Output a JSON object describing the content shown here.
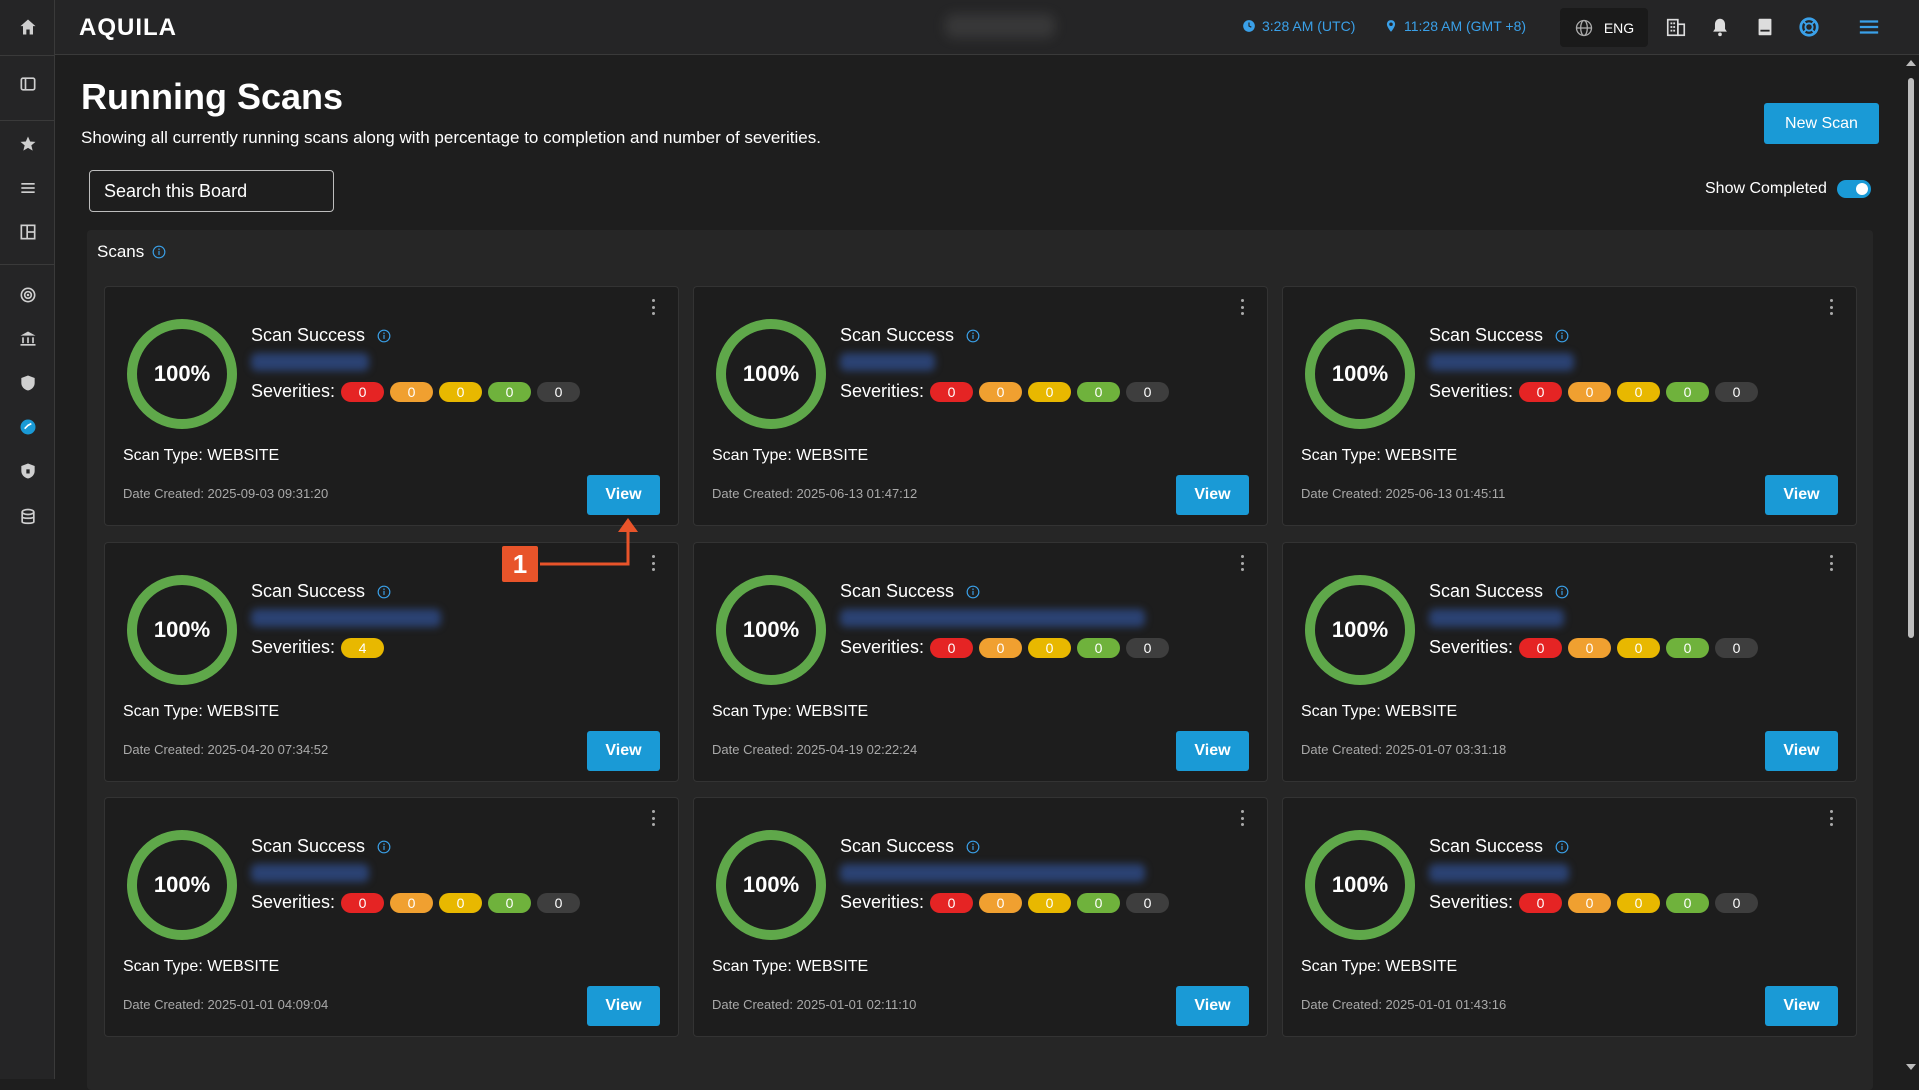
{
  "app": {
    "logo": "AQUILA"
  },
  "header": {
    "utc_time": "3:28 AM (UTC)",
    "local_time": "11:28 AM (GMT +8)",
    "language": "ENG"
  },
  "page": {
    "title": "Running Scans",
    "subtitle": "Showing all currently running scans along with percentage to completion and number of severities.",
    "new_scan_label": "New Scan",
    "search_placeholder": "Search this Board",
    "show_completed_label": "Show Completed",
    "show_completed_on": true
  },
  "panel": {
    "title": "Scans"
  },
  "cards": [
    {
      "percent": "100%",
      "status": "Scan Success",
      "severities_label": "Severities:",
      "severities": [
        "0",
        "0",
        "0",
        "0",
        "0"
      ],
      "scan_type": "Scan Type: WEBSITE",
      "date": "Date Created: 2025-09-03 09:31:20",
      "view": "View"
    },
    {
      "percent": "100%",
      "status": "Scan Success",
      "severities_label": "Severities:",
      "severities": [
        "0",
        "0",
        "0",
        "0",
        "0"
      ],
      "scan_type": "Scan Type: WEBSITE",
      "date": "Date Created: 2025-06-13 01:47:12",
      "view": "View"
    },
    {
      "percent": "100%",
      "status": "Scan Success",
      "severities_label": "Severities:",
      "severities": [
        "0",
        "0",
        "0",
        "0",
        "0"
      ],
      "scan_type": "Scan Type: WEBSITE",
      "date": "Date Created: 2025-06-13 01:45:11",
      "view": "View"
    },
    {
      "percent": "100%",
      "status": "Scan Success",
      "severities_label": "Severities:",
      "severities": [
        "4"
      ],
      "scan_type": "Scan Type: WEBSITE",
      "date": "Date Created: 2025-04-20 07:34:52",
      "view": "View"
    },
    {
      "percent": "100%",
      "status": "Scan Success",
      "severities_label": "Severities:",
      "severities": [
        "0",
        "0",
        "0",
        "0",
        "0"
      ],
      "scan_type": "Scan Type: WEBSITE",
      "date": "Date Created: 2025-04-19 02:22:24",
      "view": "View"
    },
    {
      "percent": "100%",
      "status": "Scan Success",
      "severities_label": "Severities:",
      "severities": [
        "0",
        "0",
        "0",
        "0",
        "0"
      ],
      "scan_type": "Scan Type: WEBSITE",
      "date": "Date Created: 2025-01-07 03:31:18",
      "view": "View"
    },
    {
      "percent": "100%",
      "status": "Scan Success",
      "severities_label": "Severities:",
      "severities": [
        "0",
        "0",
        "0",
        "0",
        "0"
      ],
      "scan_type": "Scan Type: WEBSITE",
      "date": "Date Created: 2025-01-01 04:09:04",
      "view": "View"
    },
    {
      "percent": "100%",
      "status": "Scan Success",
      "severities_label": "Severities:",
      "severities": [
        "0",
        "0",
        "0",
        "0",
        "0"
      ],
      "scan_type": "Scan Type: WEBSITE",
      "date": "Date Created: 2025-01-01 02:11:10",
      "view": "View"
    },
    {
      "percent": "100%",
      "status": "Scan Success",
      "severities_label": "Severities:",
      "severities": [
        "0",
        "0",
        "0",
        "0",
        "0"
      ],
      "scan_type": "Scan Type: WEBSITE",
      "date": "Date Created: 2025-01-01 01:43:16",
      "view": "View"
    }
  ],
  "annotation": {
    "label": "1"
  },
  "colors": {
    "accent": "#1a9ad6",
    "ring": "#5fa84a",
    "sev_critical": "#e52424",
    "sev_high": "#f0a030",
    "sev_medium": "#e8b800",
    "sev_low": "#6fb23c",
    "sev_info": "#3e3e3e",
    "annotation": "#e8542a"
  },
  "icons": {
    "sidebar": [
      "home-icon",
      "panel-icon",
      "star-icon",
      "menu-icon",
      "layout-icon",
      "radar-icon",
      "bank-icon",
      "shield-icon",
      "dashboard-icon",
      "shield-lock-icon",
      "database-icon"
    ],
    "header": [
      "globe-icon",
      "building-icon",
      "bell-icon",
      "book-icon",
      "lifebuoy-icon",
      "hamburger-icon"
    ]
  }
}
